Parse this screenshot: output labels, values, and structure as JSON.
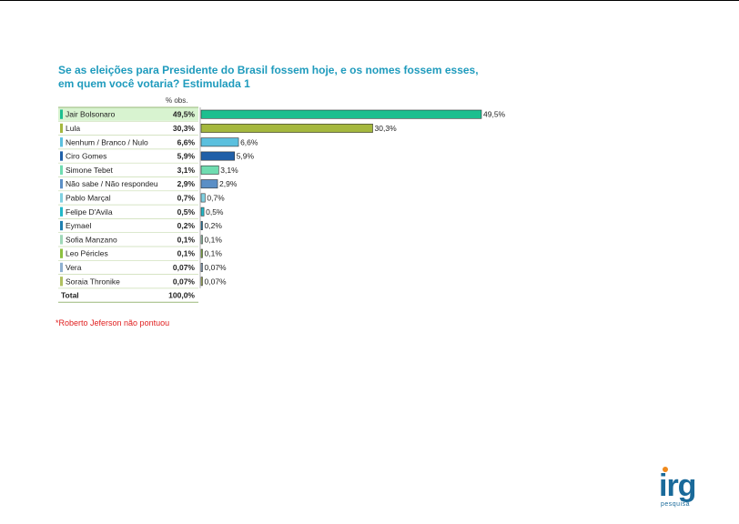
{
  "title": "Se as eleições para Presidente do Brasil fossem hoje, e os nomes fossem esses, em quem você votaria? Estimulada 1",
  "column_header": "% obs.",
  "total_label": "Total",
  "total_value": "100,0%",
  "footnote": "*Roberto Jeferson não pontuou",
  "logo": {
    "text": "irg",
    "subtext": "pesquisa"
  },
  "chart_data": {
    "type": "bar",
    "orientation": "horizontal",
    "categories": [
      "Jair Bolsonaro",
      "Lula",
      "Nenhum / Branco / Nulo",
      "Ciro Gomes",
      "Simone Tebet",
      "Não sabe / Não respondeu",
      "Pablo Marçal",
      "Felipe D'Avila",
      "Eymael",
      "Sofia Manzano",
      "Leo Péricles",
      "Vera",
      "Soraia Thronike"
    ],
    "values": [
      49.5,
      30.3,
      6.6,
      5.9,
      3.1,
      2.9,
      0.7,
      0.5,
      0.2,
      0.1,
      0.1,
      0.07,
      0.07
    ],
    "value_labels": [
      "49,5%",
      "30,3%",
      "6,6%",
      "5,9%",
      "3,1%",
      "2,9%",
      "0,7%",
      "0,5%",
      "0,2%",
      "0,1%",
      "0,1%",
      "0,07%",
      "0,07%"
    ],
    "colors": [
      "#1dbf8f",
      "#a5b83e",
      "#5bc0de",
      "#1f5fa8",
      "#6fdcb0",
      "#5b8fc6",
      "#7fd0e0",
      "#22b8c8",
      "#1f7fb0",
      "#9fd8b8",
      "#8cc040",
      "#8fb0d0",
      "#b0c060"
    ],
    "highlight_first_row": true,
    "xlim": [
      0,
      50
    ]
  }
}
